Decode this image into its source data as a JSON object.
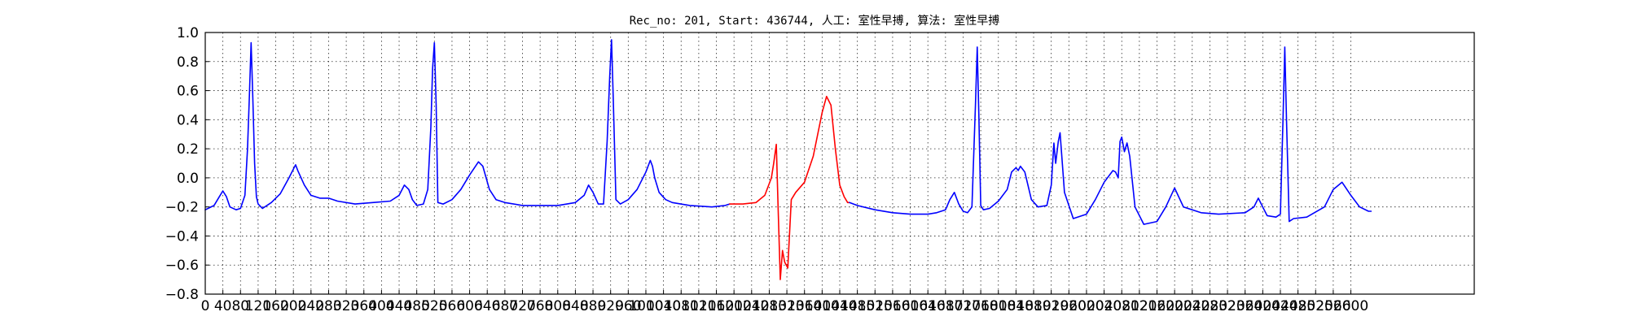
{
  "chart_data": {
    "type": "line",
    "title": "Rec_no: 201, Start: 436744, 人工: 室性早搏, 算法: 室性早搏",
    "xlabel": "",
    "ylabel": "",
    "xlim": [
      0,
      2880
    ],
    "ylim": [
      -0.8,
      1.0
    ],
    "grid": true,
    "yticks": [
      "−0.8",
      "−0.6",
      "−0.4",
      "−0.2",
      "0.0",
      "0.2",
      "0.4",
      "0.6",
      "0.8",
      "1.0"
    ],
    "ytick_values": [
      -0.8,
      -0.6,
      -0.4,
      -0.2,
      0.0,
      0.2,
      0.4,
      0.6,
      0.8,
      1.0
    ],
    "xtick_values": [
      0,
      40,
      80,
      120,
      160,
      200,
      240,
      280,
      320,
      360,
      400,
      440,
      480,
      520,
      560,
      600,
      640,
      680,
      720,
      760,
      800,
      840,
      880,
      920,
      960,
      1000,
      1040,
      1080,
      1120,
      1160,
      1200,
      1240,
      1280,
      1320,
      1360,
      1400,
      1440,
      1480,
      1520,
      1560,
      1600,
      1640,
      1680,
      1720,
      1760,
      1800,
      1840,
      1880,
      1920,
      1960,
      2000,
      2040,
      2080,
      2120,
      2160,
      2200,
      2240,
      2280,
      2320,
      2360,
      2400,
      2440,
      2480,
      2520,
      2560,
      2600
    ],
    "xticks": [
      "0",
      "40",
      "80",
      "120",
      "160",
      "200",
      "240",
      "280",
      "320",
      "360",
      "400",
      "440",
      "480",
      "520",
      "560",
      "600",
      "640",
      "680",
      "720",
      "760",
      "800",
      "840",
      "880",
      "920",
      "960",
      "1000",
      "1040",
      "1080",
      "1120",
      "1160",
      "1200",
      "1240",
      "1280",
      "1320",
      "1360",
      "1400",
      "1440",
      "1480",
      "1520",
      "1560",
      "1600",
      "1640",
      "1680",
      "1720",
      "1760",
      "1800",
      "1840",
      "1880",
      "1920",
      "1960",
      "2000",
      "2040",
      "2080",
      "2120",
      "2160",
      "2200",
      "2240",
      "2280",
      "2320",
      "2360",
      "2400",
      "2440",
      "2480",
      "2520",
      "2560",
      "2600"
    ],
    "series": [
      {
        "color": "#0000ff",
        "x": [
          0,
          20,
          32,
          40,
          48,
          56,
          70,
          80,
          90,
          96,
          100,
          104,
          108,
          112,
          116,
          120,
          130,
          150,
          170,
          190,
          205,
          210,
          225,
          240,
          260,
          280,
          300,
          340,
          380,
          420,
          440,
          452,
          462,
          470,
          480,
          495,
          505,
          512,
          516,
          520,
          524,
          528,
          540,
          560,
          580,
          600,
          620,
          630,
          645,
          660,
          680,
          720,
          800,
          840,
          860,
          870,
          880,
          892,
          904,
          912,
          918,
          922,
          926,
          932,
          942,
          960,
          980,
          1000,
          1010,
          1015,
          1020,
          1030,
          1045,
          1060,
          1100,
          1150,
          1180,
          1190
        ],
        "y": [
          -0.22,
          -0.19,
          -0.13,
          -0.09,
          -0.13,
          -0.2,
          -0.22,
          -0.21,
          -0.12,
          0.2,
          0.55,
          0.93,
          0.55,
          0.1,
          -0.13,
          -0.18,
          -0.21,
          -0.17,
          -0.11,
          0.0,
          0.09,
          0.05,
          -0.05,
          -0.12,
          -0.14,
          -0.14,
          -0.16,
          -0.18,
          -0.17,
          -0.16,
          -0.12,
          -0.05,
          -0.08,
          -0.15,
          -0.19,
          -0.18,
          -0.08,
          0.35,
          0.75,
          0.93,
          0.5,
          -0.17,
          -0.18,
          -0.15,
          -0.08,
          0.02,
          0.11,
          0.08,
          -0.08,
          -0.15,
          -0.17,
          -0.19,
          -0.19,
          -0.17,
          -0.12,
          -0.05,
          -0.1,
          -0.18,
          -0.18,
          0.25,
          0.7,
          0.95,
          0.55,
          -0.15,
          -0.18,
          -0.15,
          -0.08,
          0.04,
          0.12,
          0.08,
          0.0,
          -0.1,
          -0.15,
          -0.17,
          -0.19,
          -0.2,
          -0.19,
          -0.18
        ]
      },
      {
        "color": "#ff0000",
        "x": [
          1190,
          1220,
          1250,
          1270,
          1285,
          1290,
          1296,
          1300,
          1305,
          1310,
          1315,
          1322,
          1330,
          1340,
          1360,
          1380,
          1400,
          1410,
          1420,
          1430,
          1440,
          1450,
          1458,
          1462
        ],
        "y": [
          -0.18,
          -0.18,
          -0.17,
          -0.12,
          0.0,
          0.1,
          0.23,
          -0.2,
          -0.7,
          -0.5,
          -0.58,
          -0.62,
          -0.15,
          -0.1,
          -0.03,
          0.15,
          0.45,
          0.56,
          0.5,
          0.2,
          -0.05,
          -0.13,
          -0.17,
          -0.17
        ]
      },
      {
        "color": "#0000ff",
        "x": [
          1462,
          1480,
          1520,
          1560,
          1600,
          1640,
          1660,
          1680,
          1690,
          1700,
          1710,
          1720,
          1730,
          1740,
          1748,
          1752,
          1756,
          1760,
          1766,
          1780,
          1800,
          1820,
          1830,
          1840,
          1845,
          1850,
          1860,
          1875,
          1890,
          1910,
          1920,
          1926,
          1930,
          1936,
          1940,
          1950,
          1970,
          2000,
          2020,
          2040,
          2060,
          2066,
          2072,
          2076,
          2080,
          2086,
          2092,
          2098,
          2110,
          2130,
          2160,
          2180,
          2200,
          2220,
          2260,
          2300,
          2360,
          2380,
          2390,
          2400,
          2410,
          2430,
          2440,
          2446,
          2450,
          2454,
          2460,
          2470,
          2500,
          2540,
          2560,
          2580,
          2600,
          2620,
          2640,
          2646
        ],
        "y": [
          -0.17,
          -0.19,
          -0.22,
          -0.24,
          -0.25,
          -0.25,
          -0.24,
          -0.22,
          -0.15,
          -0.1,
          -0.18,
          -0.23,
          -0.24,
          -0.2,
          0.5,
          0.9,
          0.4,
          -0.19,
          -0.22,
          -0.21,
          -0.16,
          -0.08,
          0.04,
          0.07,
          0.05,
          0.08,
          0.04,
          -0.15,
          -0.2,
          -0.19,
          -0.05,
          0.24,
          0.1,
          0.25,
          0.31,
          -0.1,
          -0.28,
          -0.25,
          -0.15,
          -0.03,
          0.05,
          0.04,
          0.0,
          0.25,
          0.28,
          0.18,
          0.24,
          0.15,
          -0.2,
          -0.32,
          -0.3,
          -0.2,
          -0.07,
          -0.2,
          -0.24,
          -0.25,
          -0.24,
          -0.2,
          -0.14,
          -0.2,
          -0.26,
          -0.27,
          -0.25,
          0.4,
          0.9,
          0.4,
          -0.3,
          -0.28,
          -0.27,
          -0.2,
          -0.08,
          -0.03,
          -0.12,
          -0.2,
          -0.23,
          -0.23
        ]
      }
    ]
  }
}
